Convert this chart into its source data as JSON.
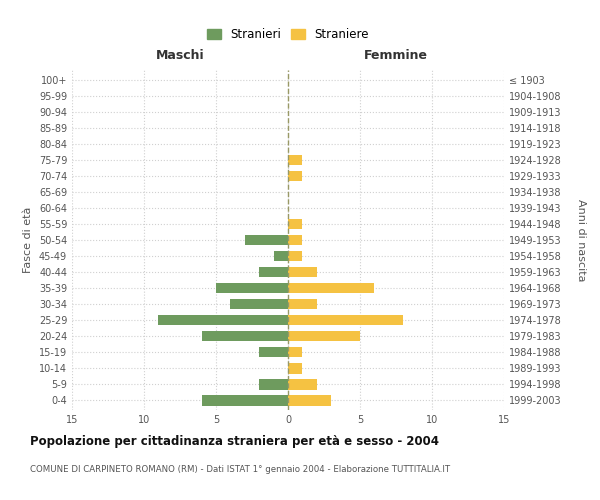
{
  "age_groups": [
    "0-4",
    "5-9",
    "10-14",
    "15-19",
    "20-24",
    "25-29",
    "30-34",
    "35-39",
    "40-44",
    "45-49",
    "50-54",
    "55-59",
    "60-64",
    "65-69",
    "70-74",
    "75-79",
    "80-84",
    "85-89",
    "90-94",
    "95-99",
    "100+"
  ],
  "birth_years": [
    "1999-2003",
    "1994-1998",
    "1989-1993",
    "1984-1988",
    "1979-1983",
    "1974-1978",
    "1969-1973",
    "1964-1968",
    "1959-1963",
    "1954-1958",
    "1949-1953",
    "1944-1948",
    "1939-1943",
    "1934-1938",
    "1929-1933",
    "1924-1928",
    "1919-1923",
    "1914-1918",
    "1909-1913",
    "1904-1908",
    "≤ 1903"
  ],
  "males": [
    6,
    2,
    0,
    2,
    6,
    9,
    4,
    5,
    2,
    1,
    3,
    0,
    0,
    0,
    0,
    0,
    0,
    0,
    0,
    0,
    0
  ],
  "females": [
    3,
    2,
    1,
    1,
    5,
    8,
    2,
    6,
    2,
    1,
    1,
    1,
    0,
    0,
    1,
    1,
    0,
    0,
    0,
    0,
    0
  ],
  "male_color": "#6e9b5e",
  "female_color": "#f5c242",
  "background_color": "#ffffff",
  "grid_color": "#d0d0d0",
  "zero_line_color": "#999966",
  "title": "Popolazione per cittadinanza straniera per età e sesso - 2004",
  "subtitle": "COMUNE DI CARPINETO ROMANO (RM) - Dati ISTAT 1° gennaio 2004 - Elaborazione TUTTITALIA.IT",
  "xlabel_left": "Maschi",
  "xlabel_right": "Femmine",
  "ylabel_left": "Fasce di età",
  "ylabel_right": "Anni di nascita",
  "legend_male": "Stranieri",
  "legend_female": "Straniere",
  "xlim": 15,
  "tick_color": "#555555",
  "title_color": "#111111",
  "subtitle_color": "#555555"
}
